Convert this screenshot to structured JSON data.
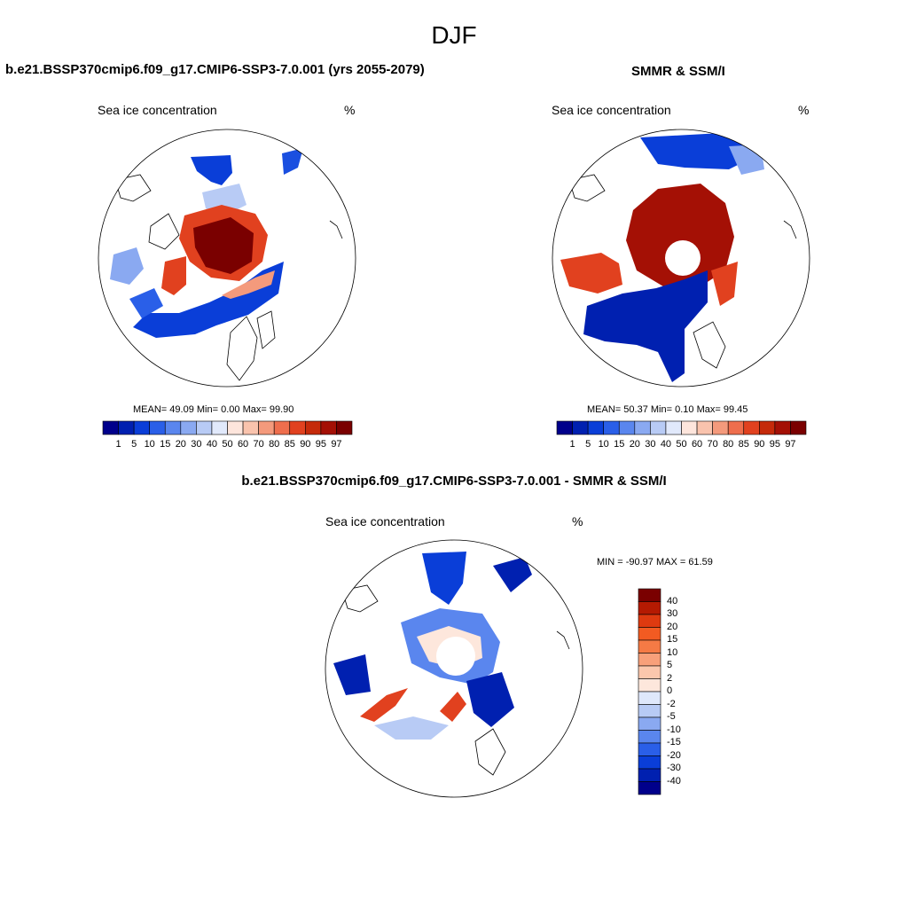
{
  "figure": {
    "title": "DJF"
  },
  "panels": {
    "model": {
      "title": "b.e21.BSSP370cmip6.f09_g17.CMIP6-SSP3-7.0.001 (yrs 2055-2079)",
      "variable": "Sea ice concentration",
      "units": "%",
      "stats": {
        "mean_label": "MEAN=",
        "mean": "49.09",
        "min_label": "Min=",
        "min": "0.00",
        "max_label": "Max=",
        "max": "99.90"
      }
    },
    "obs": {
      "title": "SMMR & SSM/I",
      "variable": "Sea ice concentration",
      "units": "%",
      "stats": {
        "mean_label": "MEAN=",
        "mean": "50.37",
        "min_label": "Min=",
        "min": "0.10",
        "max_label": "Max=",
        "max": "99.45"
      }
    },
    "diff": {
      "title": "b.e21.BSSP370cmip6.f09_g17.CMIP6-SSP3-7.0.001 - SMMR & SSM/I",
      "variable": "Sea ice concentration",
      "units": "%",
      "minmax": "MIN = -90.97 MAX =  61.59"
    }
  },
  "colorbar_conc": {
    "labels": [
      "1",
      "5",
      "10",
      "15",
      "20",
      "30",
      "40",
      "50",
      "60",
      "70",
      "80",
      "85",
      "90",
      "95",
      "97"
    ],
    "colors": [
      "#00008b",
      "#0020b0",
      "#0a3ed8",
      "#2a5fe8",
      "#5a86ee",
      "#8aa9f1",
      "#b8cbf5",
      "#e1e9fb",
      "#fde5dc",
      "#f9c3ad",
      "#f49a7c",
      "#ee6e4d",
      "#e1411f",
      "#c52a0a",
      "#a41005",
      "#7a0000"
    ]
  },
  "colorbar_diff": {
    "labels": [
      "40",
      "30",
      "20",
      "15",
      "10",
      "5",
      "2",
      "0",
      "-2",
      "-5",
      "-10",
      "-15",
      "-20",
      "-30",
      "-40"
    ],
    "colors": [
      "#7a0000",
      "#b51a02",
      "#de3a10",
      "#f25b22",
      "#f57a45",
      "#f8a07a",
      "#fbc7ad",
      "#fde7dc",
      "#dfe8fb",
      "#b8cbf5",
      "#8aa9f1",
      "#5a86ee",
      "#2a5fe8",
      "#0a3ed8",
      "#0020b0",
      "#00008b"
    ]
  }
}
